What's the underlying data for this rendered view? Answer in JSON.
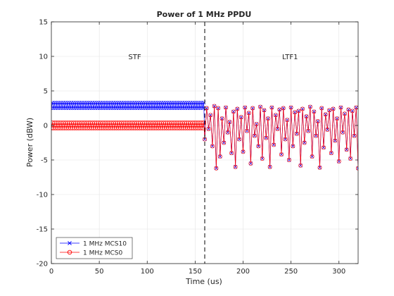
{
  "chart_data": {
    "type": "line",
    "title": "Power of 1 MHz PPDU",
    "xlabel": "Time (us)",
    "ylabel": "Power (dBW)",
    "xlim": [
      0,
      320
    ],
    "ylim": [
      -20,
      15
    ],
    "xticks": [
      0,
      50,
      100,
      150,
      200,
      250,
      300
    ],
    "yticks": [
      -20,
      -15,
      -10,
      -5,
      0,
      5,
      10,
      15
    ],
    "grid": true,
    "legend_position": "bottom-left",
    "markers": [
      {
        "x": 160,
        "style": "dashed",
        "color": "#000000"
      }
    ],
    "annotations": [
      {
        "text": "STF",
        "x": 87,
        "y": 10
      },
      {
        "text": "LTF1",
        "x": 249,
        "y": 10
      }
    ],
    "series": [
      {
        "name": "1 MHz MCS10",
        "color": "#0000ff",
        "marker": "x",
        "stf_x_range": [
          0,
          159
        ],
        "stf_values": [
          2.5,
          3.3
        ],
        "ltf_x": [
          160,
          162,
          164,
          166,
          168,
          170,
          172,
          174,
          176,
          178,
          180,
          182,
          184,
          186,
          188,
          190,
          192,
          194,
          196,
          198,
          200,
          202,
          204,
          206,
          208,
          210,
          212,
          214,
          216,
          218,
          220,
          222,
          224,
          226,
          228,
          230,
          232,
          234,
          236,
          238,
          240,
          242,
          244,
          246,
          248,
          250,
          252,
          254,
          256,
          258,
          260,
          262,
          264,
          266,
          268,
          270,
          272,
          274,
          276,
          278,
          280,
          282,
          284,
          286,
          288,
          290,
          292,
          294,
          296,
          298,
          300,
          302,
          304,
          306,
          308,
          310,
          312,
          314,
          316,
          318,
          320
        ],
        "ltf_values": [
          -2.0,
          2.5,
          -0.5,
          1.5,
          -3.0,
          2.8,
          -6.2,
          2.5,
          -4.5,
          1.0,
          -2.5,
          2.6,
          -1.0,
          0.5,
          -4.0,
          2.0,
          -6.0,
          2.4,
          -2.0,
          1.2,
          -3.8,
          2.6,
          -0.8,
          1.8,
          -5.5,
          2.5,
          -1.5,
          0.2,
          -3.0,
          2.7,
          -4.8,
          2.2,
          -1.8,
          1.0,
          -6.0,
          2.6,
          -2.8,
          1.5,
          -0.5,
          2.3,
          -4.2,
          2.5,
          -2.0,
          0.8,
          -5.0,
          2.6,
          -3.0,
          1.9,
          -1.2,
          2.1,
          -5.8,
          2.4,
          -2.5,
          1.3,
          -0.8,
          2.7,
          -4.5,
          2.0,
          -1.5,
          0.6,
          -6.1,
          2.5,
          -3.2,
          1.6,
          -0.6,
          2.2,
          -4.0,
          2.4,
          -2.2,
          1.0,
          -5.2,
          2.6,
          -1.0,
          1.7,
          -3.5,
          2.3,
          -4.8,
          2.1,
          -1.5,
          2.6,
          -6.2
        ]
      },
      {
        "name": "1 MHz MCS0",
        "color": "#ff0000",
        "marker": "o",
        "stf_x_range": [
          0,
          159
        ],
        "stf_values": [
          -0.4,
          0.4
        ],
        "ltf_x": [
          160,
          162,
          164,
          166,
          168,
          170,
          172,
          174,
          176,
          178,
          180,
          182,
          184,
          186,
          188,
          190,
          192,
          194,
          196,
          198,
          200,
          202,
          204,
          206,
          208,
          210,
          212,
          214,
          216,
          218,
          220,
          222,
          224,
          226,
          228,
          230,
          232,
          234,
          236,
          238,
          240,
          242,
          244,
          246,
          248,
          250,
          252,
          254,
          256,
          258,
          260,
          262,
          264,
          266,
          268,
          270,
          272,
          274,
          276,
          278,
          280,
          282,
          284,
          286,
          288,
          290,
          292,
          294,
          296,
          298,
          300,
          302,
          304,
          306,
          308,
          310,
          312,
          314,
          316,
          318,
          320
        ],
        "ltf_values": [
          -2.0,
          2.5,
          -0.5,
          1.5,
          -3.0,
          2.8,
          -6.2,
          2.5,
          -4.5,
          1.0,
          -2.5,
          2.6,
          -1.0,
          0.5,
          -4.0,
          2.0,
          -6.0,
          2.4,
          -2.0,
          1.2,
          -3.8,
          2.6,
          -0.8,
          1.8,
          -5.5,
          2.5,
          -1.5,
          0.2,
          -3.0,
          2.7,
          -4.8,
          2.2,
          -1.8,
          1.0,
          -6.0,
          2.6,
          -2.8,
          1.5,
          -0.5,
          2.3,
          -4.2,
          2.5,
          -2.0,
          0.8,
          -5.0,
          2.6,
          -3.0,
          1.9,
          -1.2,
          2.1,
          -5.8,
          2.4,
          -2.5,
          1.3,
          -0.8,
          2.7,
          -4.5,
          2.0,
          -1.5,
          0.6,
          -6.1,
          2.5,
          -3.2,
          1.6,
          -0.6,
          2.2,
          -4.0,
          2.4,
          -2.2,
          1.0,
          -5.2,
          2.6,
          -1.0,
          1.7,
          -3.5,
          2.3,
          -4.8,
          2.1,
          -1.5,
          2.6,
          -6.2
        ]
      }
    ]
  }
}
